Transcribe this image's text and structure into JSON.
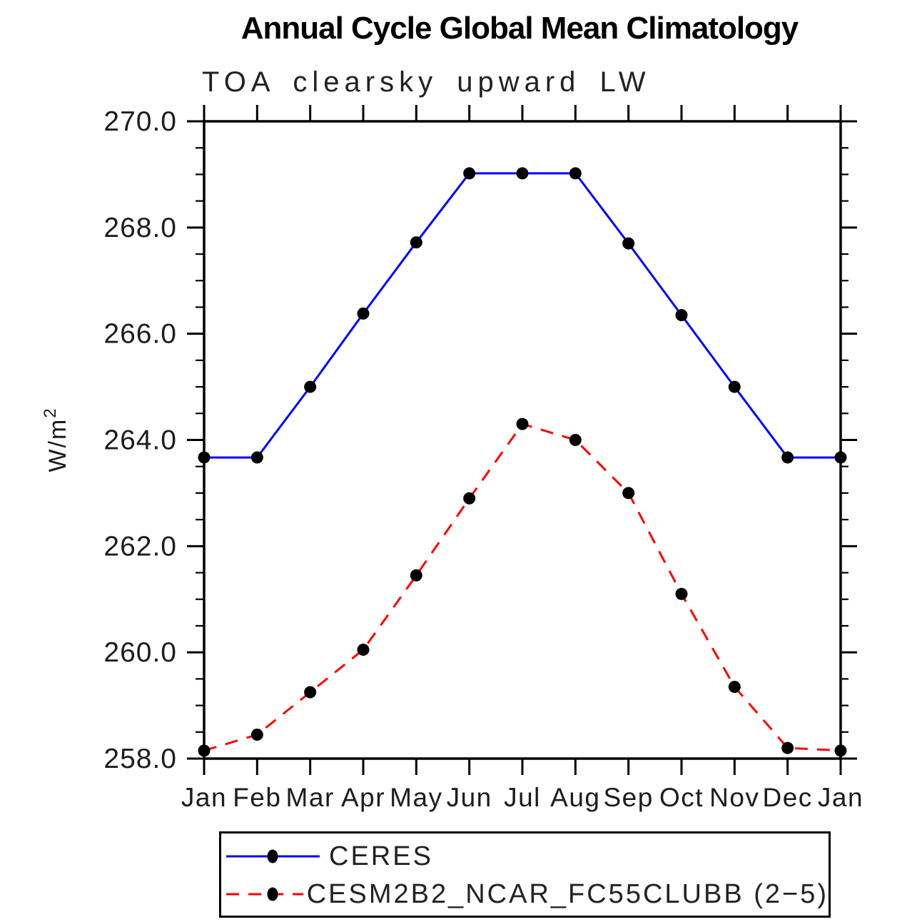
{
  "title": "Annual Cycle Global Mean Climatology",
  "subtitle": "TOA clearsky upward LW",
  "chart_data": {
    "type": "line",
    "title": "Annual Cycle Global Mean Climatology",
    "subtitle": "TOA clearsky upward LW",
    "x": [
      "Jan",
      "Feb",
      "Mar",
      "Apr",
      "May",
      "Jun",
      "Jul",
      "Aug",
      "Sep",
      "Oct",
      "Nov",
      "Dec",
      "Jan"
    ],
    "xlabel": "",
    "ylabel": "W/m2",
    "ylabel_base": "W/m",
    "ylabel_exp": "2",
    "ylim": [
      258.0,
      270.0
    ],
    "ytick_step": 2.0,
    "yminor_step": 0.5,
    "ytick_labels": [
      "258.0",
      "260.0",
      "262.0",
      "264.0",
      "266.0",
      "268.0",
      "270.0"
    ],
    "grid": false,
    "legend_position": "bottom-left-box",
    "series": [
      {
        "name": "CERES",
        "color": "#0000ff",
        "style": "solid",
        "marker": "circle",
        "marker_color": "#000000",
        "values": [
          263.67,
          263.67,
          265.0,
          266.38,
          267.72,
          269.02,
          269.02,
          269.02,
          267.7,
          266.35,
          265.0,
          263.67,
          263.67
        ]
      },
      {
        "name": "CESM2B2_NCAR_FC55CLUBB (2−5)",
        "color": "#ff0000",
        "style": "dashed",
        "marker": "circle",
        "marker_color": "#000000",
        "values": [
          258.15,
          258.45,
          259.25,
          260.05,
          261.45,
          262.9,
          264.3,
          264.0,
          263.0,
          261.1,
          259.35,
          258.2,
          258.15
        ]
      }
    ]
  }
}
